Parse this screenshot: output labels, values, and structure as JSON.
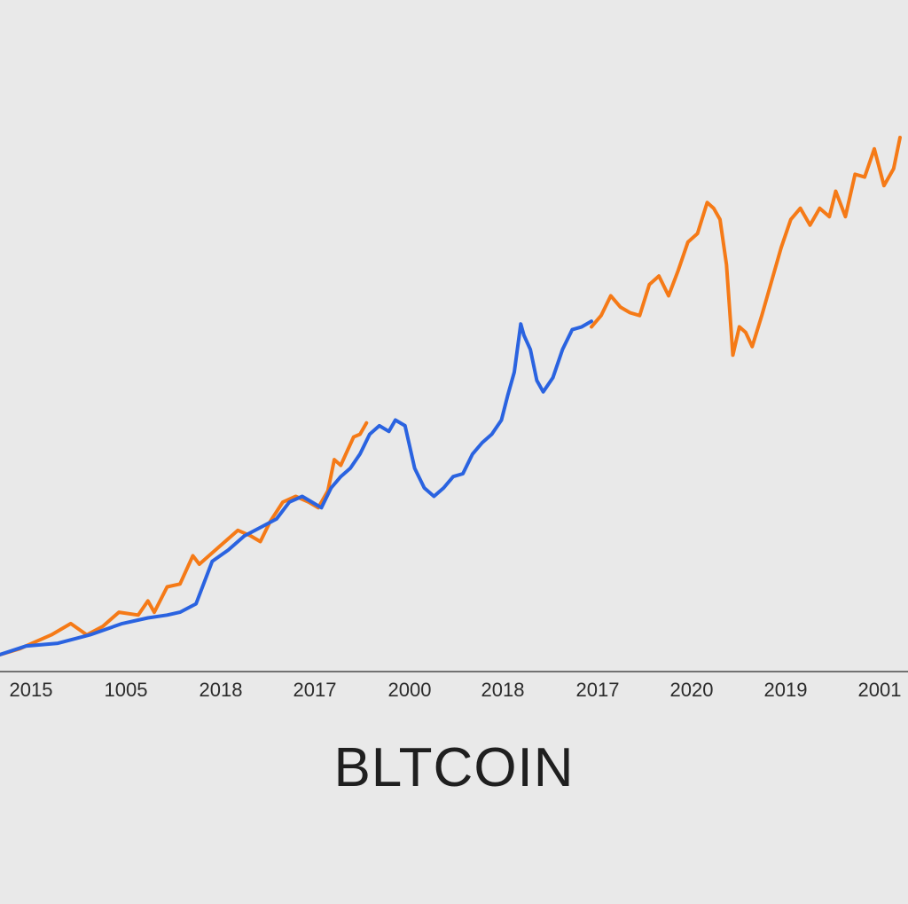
{
  "chart_data": {
    "type": "line",
    "title": "BLTCOIN",
    "tick_labels": [
      "2015",
      "1005",
      "2018",
      "2017",
      "2000",
      "2018",
      "2017",
      "2020",
      "2019",
      "2001"
    ],
    "ylim": [
      0,
      100
    ],
    "grid": false,
    "series": [
      {
        "color": "#f57a17",
        "points": [
          [
            0.0,
            3.0
          ],
          [
            0.3,
            4.0
          ],
          [
            0.5,
            5.0
          ],
          [
            0.8,
            6.5
          ],
          [
            1.1,
            8.5
          ],
          [
            1.35,
            6.5
          ],
          [
            1.6,
            8.0
          ],
          [
            1.85,
            10.5
          ],
          [
            2.15,
            10.0
          ],
          [
            2.3,
            12.5
          ],
          [
            2.4,
            10.5
          ],
          [
            2.6,
            15.0
          ],
          [
            2.8,
            15.5
          ],
          [
            3.0,
            20.5
          ],
          [
            3.1,
            19.0
          ],
          [
            3.4,
            22.0
          ],
          [
            3.7,
            25.0
          ],
          [
            3.9,
            24.0
          ],
          [
            4.05,
            23.0
          ],
          [
            4.2,
            26.5
          ],
          [
            4.4,
            30.0
          ],
          [
            4.6,
            31.0
          ],
          [
            4.8,
            30.0
          ],
          [
            4.95,
            29.0
          ],
          [
            5.1,
            32.0
          ],
          [
            5.2,
            37.5
          ],
          [
            5.3,
            36.5
          ],
          [
            5.4,
            39.0
          ],
          [
            5.5,
            41.5
          ],
          [
            5.6,
            42.0
          ],
          [
            5.7,
            44.0
          ]
        ]
      },
      {
        "color": "#2a63e0",
        "points": [
          [
            0.0,
            3.0
          ],
          [
            0.4,
            4.5
          ],
          [
            0.9,
            5.0
          ],
          [
            1.4,
            6.5
          ],
          [
            1.9,
            8.5
          ],
          [
            2.3,
            9.5
          ],
          [
            2.6,
            10.0
          ],
          [
            2.8,
            10.5
          ],
          [
            3.05,
            12.0
          ],
          [
            3.3,
            19.5
          ],
          [
            3.55,
            21.5
          ],
          [
            3.8,
            24.0
          ],
          [
            4.05,
            25.5
          ],
          [
            4.3,
            27.0
          ],
          [
            4.5,
            30.0
          ],
          [
            4.7,
            31.0
          ],
          [
            4.85,
            30.0
          ],
          [
            5.0,
            29.0
          ],
          [
            5.15,
            32.5
          ],
          [
            5.3,
            34.5
          ],
          [
            5.45,
            36.0
          ],
          [
            5.6,
            38.5
          ],
          [
            5.75,
            42.0
          ],
          [
            5.9,
            43.5
          ],
          [
            6.05,
            42.5
          ],
          [
            6.15,
            44.5
          ],
          [
            6.3,
            43.5
          ],
          [
            6.45,
            36.0
          ],
          [
            6.6,
            32.5
          ],
          [
            6.75,
            31.0
          ],
          [
            6.9,
            32.5
          ],
          [
            7.05,
            34.5
          ],
          [
            7.2,
            35.0
          ],
          [
            7.35,
            38.5
          ],
          [
            7.5,
            40.5
          ],
          [
            7.65,
            42.0
          ],
          [
            7.8,
            44.5
          ],
          [
            7.9,
            49.0
          ],
          [
            8.0,
            53.0
          ],
          [
            8.1,
            61.5
          ],
          [
            8.15,
            59.5
          ],
          [
            8.25,
            57.0
          ],
          [
            8.35,
            51.5
          ],
          [
            8.45,
            49.5
          ],
          [
            8.6,
            52.0
          ],
          [
            8.75,
            57.0
          ],
          [
            8.9,
            60.5
          ],
          [
            9.05,
            61.0
          ],
          [
            9.2,
            62.0
          ]
        ]
      },
      {
        "color": "#f57a17",
        "points": [
          [
            9.2,
            61.0
          ],
          [
            9.35,
            63.0
          ],
          [
            9.5,
            66.5
          ],
          [
            9.65,
            64.5
          ],
          [
            9.8,
            63.5
          ],
          [
            9.95,
            63.0
          ],
          [
            10.1,
            68.5
          ],
          [
            10.25,
            70.0
          ],
          [
            10.4,
            66.5
          ],
          [
            10.55,
            71.0
          ],
          [
            10.7,
            76.0
          ],
          [
            10.85,
            77.5
          ],
          [
            11.0,
            83.0
          ],
          [
            11.1,
            82.0
          ],
          [
            11.2,
            80.0
          ],
          [
            11.3,
            72.0
          ],
          [
            11.4,
            56.0
          ],
          [
            11.5,
            61.0
          ],
          [
            11.6,
            60.0
          ],
          [
            11.7,
            57.5
          ],
          [
            11.85,
            63.0
          ],
          [
            12.0,
            69.0
          ],
          [
            12.15,
            75.0
          ],
          [
            12.3,
            80.0
          ],
          [
            12.45,
            82.0
          ],
          [
            12.6,
            79.0
          ],
          [
            12.75,
            82.0
          ],
          [
            12.9,
            80.5
          ],
          [
            13.0,
            85.0
          ],
          [
            13.15,
            80.5
          ],
          [
            13.3,
            88.0
          ],
          [
            13.45,
            87.5
          ],
          [
            13.6,
            92.5
          ],
          [
            13.75,
            86.0
          ],
          [
            13.9,
            89.0
          ],
          [
            14.0,
            94.5
          ]
        ]
      }
    ]
  }
}
